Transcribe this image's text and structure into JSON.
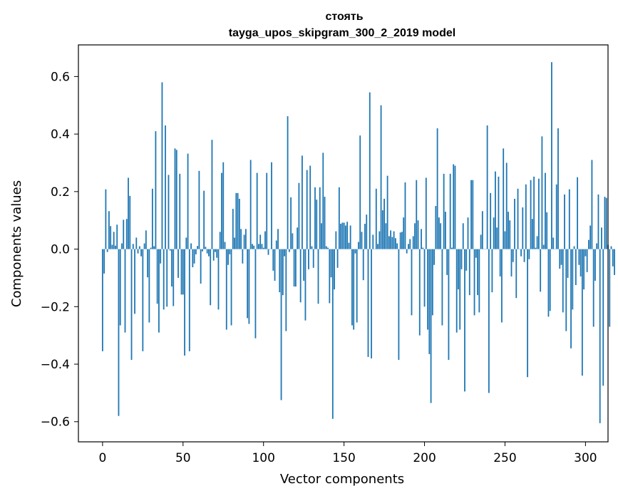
{
  "chart_data": {
    "type": "bar",
    "title": "стоять",
    "subtitle": "tayga_upos_skipgram_300_2_2019 model",
    "xlabel": "Vector components",
    "ylabel": "Components values",
    "xlim": [
      -15,
      314
    ],
    "ylim": [
      -0.67,
      0.71
    ],
    "xticks": [
      0,
      50,
      100,
      150,
      200,
      250,
      300
    ],
    "yticks": [
      -0.6,
      -0.4,
      -0.2,
      0.0,
      0.2,
      0.4,
      0.6
    ],
    "ytick_labels": [
      "−0.6",
      "−0.4",
      "−0.2",
      "0.0",
      "0.2",
      "0.4",
      "0.6"
    ],
    "bar_color": "#1f77b4",
    "grid": false,
    "values": [
      -0.355,
      -0.085,
      0.208,
      -0.01,
      0.132,
      0.08,
      0.015,
      0.06,
      0.012,
      0.085,
      -0.58,
      -0.265,
      0.02,
      0.102,
      -0.29,
      0.105,
      0.248,
      0.185,
      -0.385,
      0.018,
      -0.225,
      0.04,
      -0.015,
      0.01,
      -0.025,
      -0.355,
      0.02,
      0.065,
      -0.098,
      -0.255,
      0.005,
      0.21,
      0.01,
      0.41,
      -0.19,
      -0.29,
      -0.05,
      0.58,
      -0.21,
      0.43,
      -0.2,
      0.258,
      -0.005,
      -0.13,
      -0.198,
      0.35,
      0.345,
      -0.1,
      0.262,
      -0.158,
      -0.158,
      -0.37,
      0.04,
      0.332,
      -0.355,
      0.02,
      -0.063,
      -0.05,
      -0.018,
      0.011,
      0.272,
      -0.12,
      -0.008,
      0.203,
      0.008,
      -0.015,
      -0.025,
      -0.195,
      0.38,
      -0.04,
      -0.01,
      -0.03,
      -0.21,
      0.06,
      0.265,
      0.302,
      0.025,
      -0.28,
      -0.055,
      -0.018,
      -0.265,
      0.14,
      0.04,
      0.195,
      0.195,
      0.175,
      0.07,
      -0.05,
      0.05,
      0.07,
      -0.24,
      -0.26,
      0.31,
      0.018,
      0.012,
      -0.31,
      0.265,
      0.018,
      0.05,
      0.018,
      0.005,
      0.062,
      0.265,
      -0.02,
      -0.0,
      0.302,
      -0.075,
      -0.11,
      0.03,
      0.07,
      -0.15,
      -0.525,
      -0.16,
      -0.025,
      -0.285,
      0.462,
      -0.01,
      0.18,
      0.055,
      -0.13,
      -0.13,
      0.075,
      0.23,
      -0.185,
      0.325,
      -0.11,
      -0.248,
      0.275,
      -0.07,
      0.29,
      0.01,
      -0.065,
      0.215,
      0.172,
      -0.19,
      0.215,
      0.09,
      0.335,
      0.182,
      0.01,
      0.005,
      -0.188,
      -0.098,
      -0.59,
      -0.14,
      0.062,
      -0.065,
      0.215,
      0.088,
      0.092,
      0.092,
      0.082,
      0.095,
      0.022,
      0.082,
      -0.265,
      -0.28,
      -0.015,
      -0.255,
      0.025,
      0.395,
      0.06,
      -0.108,
      0.088,
      0.12,
      -0.375,
      0.545,
      -0.38,
      0.05,
      0.0,
      0.21,
      0.018,
      0.062,
      0.5,
      0.135,
      0.175,
      0.09,
      0.255,
      0.045,
      0.065,
      0.042,
      0.062,
      0.038,
      0.02,
      -0.385,
      0.058,
      0.06,
      0.11,
      0.232,
      -0.015,
      0.018,
      0.035,
      -0.23,
      0.045,
      0.09,
      0.24,
      0.1,
      -0.3,
      0.07,
      0.005,
      -0.2,
      0.248,
      -0.28,
      -0.365,
      -0.535,
      -0.23,
      -0.055,
      0.15,
      0.42,
      0.11,
      0.09,
      -0.265,
      0.262,
      0.13,
      -0.09,
      -0.385,
      0.262,
      0.005,
      0.295,
      0.29,
      -0.29,
      -0.14,
      -0.28,
      -0.07,
      0.09,
      -0.495,
      -0.075,
      0.11,
      -0.16,
      0.24,
      0.24,
      -0.23,
      -0.03,
      -0.16,
      -0.22,
      0.05,
      0.132,
      0.0,
      0.0,
      0.43,
      -0.5,
      0.195,
      -0.15,
      0.11,
      0.27,
      0.075,
      0.252,
      -0.095,
      -0.255,
      0.35,
      0.062,
      0.3,
      0.13,
      0.1,
      -0.095,
      -0.045,
      0.175,
      -0.17,
      0.21,
      0.0,
      -0.025,
      0.145,
      -0.045,
      0.225,
      -0.445,
      -0.035,
      0.24,
      0.105,
      0.252,
      0.005,
      0.045,
      0.245,
      -0.148,
      0.392,
      0.015,
      0.265,
      0.128,
      -0.235,
      -0.215,
      0.65,
      0.04,
      0.0,
      0.225,
      0.42,
      -0.068,
      -0.055,
      -0.22,
      0.19,
      -0.285,
      -0.1,
      0.208,
      -0.345,
      -0.21,
      0.01,
      -0.125,
      0.25,
      -0.055,
      -0.095,
      -0.44,
      -0.14,
      -0.025,
      -0.08,
      0.032,
      0.082,
      0.31,
      -0.27,
      -0.11,
      0.02,
      0.19,
      -0.605,
      0.075,
      -0.475,
      0.182,
      0.178,
      0.015,
      -0.27,
      0.01,
      -0.06,
      -0.09
    ]
  }
}
